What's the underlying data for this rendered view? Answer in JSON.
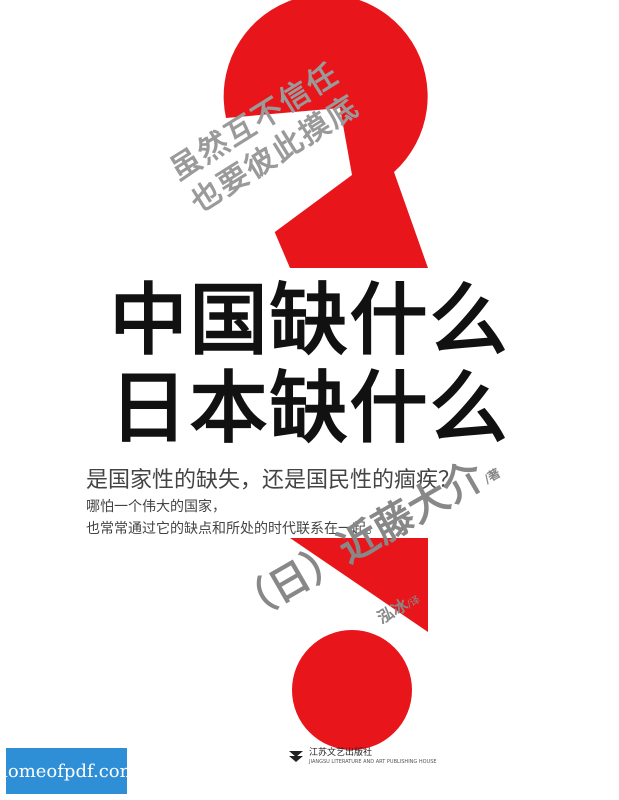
{
  "cover": {
    "tagline": [
      "虽然互不信任",
      "也要彼此摸底"
    ],
    "title_line1": "中国缺什么",
    "title_line2": "日本缺什么",
    "subtitle": "是国家性的缺失，还是国民性的痼疾？",
    "description": [
      "哪怕一个伟大的国家，",
      "也常常通过它的缺点和所处的时代联系在一起。"
    ],
    "author": {
      "prefix": "（日）",
      "name": "近藤大介",
      "role": "/著"
    },
    "translator": {
      "name": "泓冰",
      "role": "/译"
    },
    "publisher": {
      "name": "江苏文艺出版社",
      "sub": "JIANGSU LITERATURE AND ART PUBLISHING HOUSE"
    }
  },
  "watermark": {
    "text": "homeofpdf.com"
  },
  "colors": {
    "red": "#e8161b",
    "black": "#111111",
    "gray": "#9a9a9a"
  }
}
